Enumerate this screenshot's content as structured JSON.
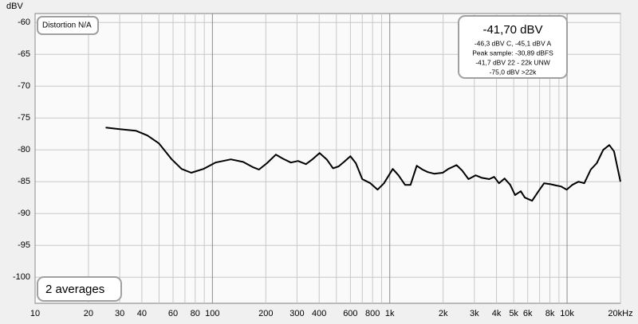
{
  "chart_data": {
    "type": "line",
    "ylabel": "dBV",
    "annotations": [
      "Distortion N/A",
      "2 averages"
    ],
    "readout": {
      "main": "-41,70 dBV",
      "lines": [
        "-46,3 dBV C, -45,1 dBV A",
        "Peak sample: -30,89 dBFS",
        "-41,7 dBV 22 - 22k UNW",
        "-75,0 dBV >22k"
      ]
    },
    "log_x": true,
    "grid": true,
    "color": "#000000",
    "xlim": [
      10,
      20000
    ],
    "ylim": [
      -104.1,
      -58.6
    ],
    "xticks": [
      10,
      20,
      30,
      40,
      60,
      80,
      100,
      200,
      300,
      400,
      600,
      800,
      {
        "value": 1000,
        "label": "1k"
      },
      {
        "value": 2000,
        "label": "2k"
      },
      {
        "value": 3000,
        "label": "3k"
      },
      {
        "value": 4000,
        "label": "4k"
      },
      {
        "value": 5000,
        "label": "5k"
      },
      {
        "value": 6000,
        "label": "6k"
      },
      {
        "value": 8000,
        "label": "8k"
      },
      {
        "value": 10000,
        "label": "10k"
      },
      {
        "value": 20000,
        "label": "20kHz"
      }
    ],
    "x_minor_grid": [
      50,
      70,
      90,
      500,
      700,
      900,
      7000,
      9000
    ],
    "yticks": [
      -60,
      -65,
      -70,
      -75,
      -80,
      -85,
      -90,
      -95,
      -100
    ],
    "x": [
      25,
      30,
      37,
      43,
      50,
      59,
      67,
      76,
      89,
      104,
      127,
      149,
      170,
      183,
      203,
      228,
      250,
      277,
      304,
      337,
      366,
      402,
      441,
      479,
      515,
      552,
      600,
      644,
      700,
      778,
      854,
      928,
      1040,
      1120,
      1220,
      1310,
      1420,
      1530,
      1640,
      1780,
      1990,
      2140,
      2380,
      2560,
      2780,
      3050,
      3310,
      3640,
      3880,
      4130,
      4440,
      4780,
      5090,
      5480,
      5780,
      6350,
      6900,
      7420,
      8070,
      8680,
      9250,
      9950,
      10700,
      11600,
      12500,
      13600,
      14700,
      16000,
      17300,
      18400,
      20000
    ],
    "values": [
      -76.5,
      -76.75,
      -77,
      -77.75,
      -79,
      -81.5,
      -83,
      -83.6,
      -83,
      -82,
      -81.5,
      -81.9,
      -82.75,
      -83.1,
      -82.1,
      -80.75,
      -81.4,
      -82,
      -81.75,
      -82.25,
      -81.5,
      -80.5,
      -81.5,
      -82.9,
      -82.6,
      -81.9,
      -81,
      -82.1,
      -84.6,
      -85.25,
      -86.25,
      -85.25,
      -83,
      -84,
      -85.5,
      -85.5,
      -82.5,
      -83.1,
      -83.5,
      -83.75,
      -83.6,
      -83,
      -82.4,
      -83.25,
      -84.6,
      -84,
      -84.4,
      -84.6,
      -84.25,
      -85.25,
      -84.5,
      -85.5,
      -87.1,
      -86.5,
      -87.5,
      -88,
      -86.5,
      -85.25,
      -85.4,
      -85.6,
      -85.75,
      -86.25,
      -85.5,
      -85,
      -85.25,
      -83.1,
      -82.1,
      -80,
      -79.25,
      -80.25,
      -85
    ]
  }
}
